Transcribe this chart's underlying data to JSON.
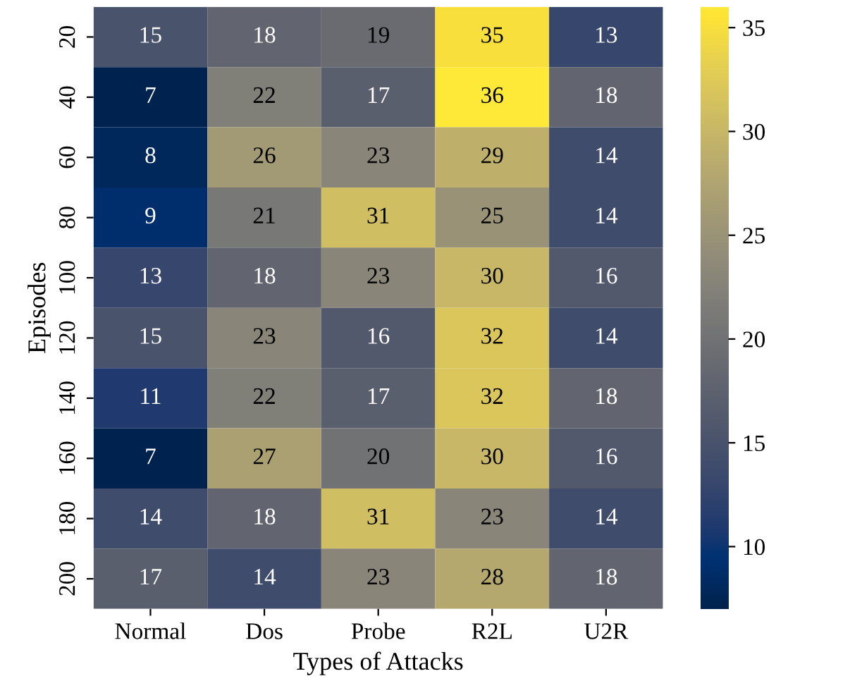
{
  "chart_data": {
    "type": "heatmap",
    "xlabel": "Types of Attacks",
    "ylabel": "Episodes",
    "categories": [
      "Normal",
      "Dos",
      "Probe",
      "R2L",
      "U2R"
    ],
    "y_categories": [
      "20",
      "40",
      "60",
      "80",
      "100",
      "120",
      "140",
      "160",
      "180",
      "200"
    ],
    "cells": [
      [
        15,
        18,
        19,
        35,
        13
      ],
      [
        7,
        22,
        17,
        36,
        18
      ],
      [
        8,
        26,
        23,
        29,
        14
      ],
      [
        9,
        21,
        31,
        25,
        14
      ],
      [
        13,
        18,
        23,
        30,
        16
      ],
      [
        15,
        23,
        16,
        32,
        14
      ],
      [
        11,
        22,
        17,
        32,
        18
      ],
      [
        7,
        27,
        20,
        30,
        16
      ],
      [
        14,
        18,
        31,
        23,
        14
      ],
      [
        17,
        14,
        23,
        28,
        18
      ]
    ],
    "data_labels": true,
    "clim": [
      7,
      36
    ],
    "cticks": [
      10,
      15,
      20,
      25,
      30,
      35
    ]
  }
}
